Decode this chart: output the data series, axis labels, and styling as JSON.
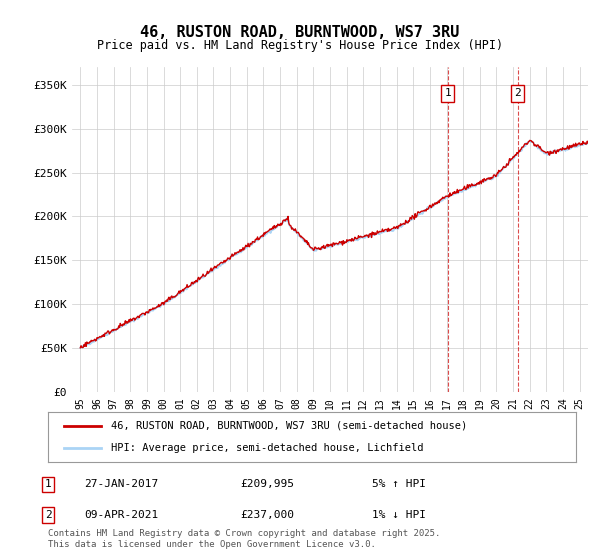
{
  "title_line1": "46, RUSTON ROAD, BURNTWOOD, WS7 3RU",
  "title_line2": "Price paid vs. HM Land Registry's House Price Index (HPI)",
  "ylabel": "",
  "background_color": "#ffffff",
  "plot_bg_color": "#ffffff",
  "grid_color": "#cccccc",
  "hpi_color": "#aad4f5",
  "price_color": "#cc0000",
  "annotation1": {
    "label": "1",
    "date_str": "27-JAN-2017",
    "price": 209995,
    "x_year": 2017.07,
    "hpi_pct": "5%",
    "direction": "↑"
  },
  "annotation2": {
    "label": "2",
    "date_str": "09-APR-2021",
    "price": 237000,
    "x_year": 2021.28,
    "hpi_pct": "1%",
    "direction": "↓"
  },
  "legend_line1": "46, RUSTON ROAD, BURNTWOOD, WS7 3RU (semi-detached house)",
  "legend_line2": "HPI: Average price, semi-detached house, Lichfield",
  "footer": "Contains HM Land Registry data © Crown copyright and database right 2025.\nThis data is licensed under the Open Government Licence v3.0.",
  "yticks": [
    0,
    50000,
    100000,
    150000,
    200000,
    250000,
    300000,
    350000
  ],
  "ytick_labels": [
    "£0",
    "£50K",
    "£100K",
    "£150K",
    "£200K",
    "£250K",
    "£300K",
    "£350K"
  ],
  "xlim": [
    1994.5,
    2025.5
  ],
  "ylim": [
    0,
    370000
  ]
}
